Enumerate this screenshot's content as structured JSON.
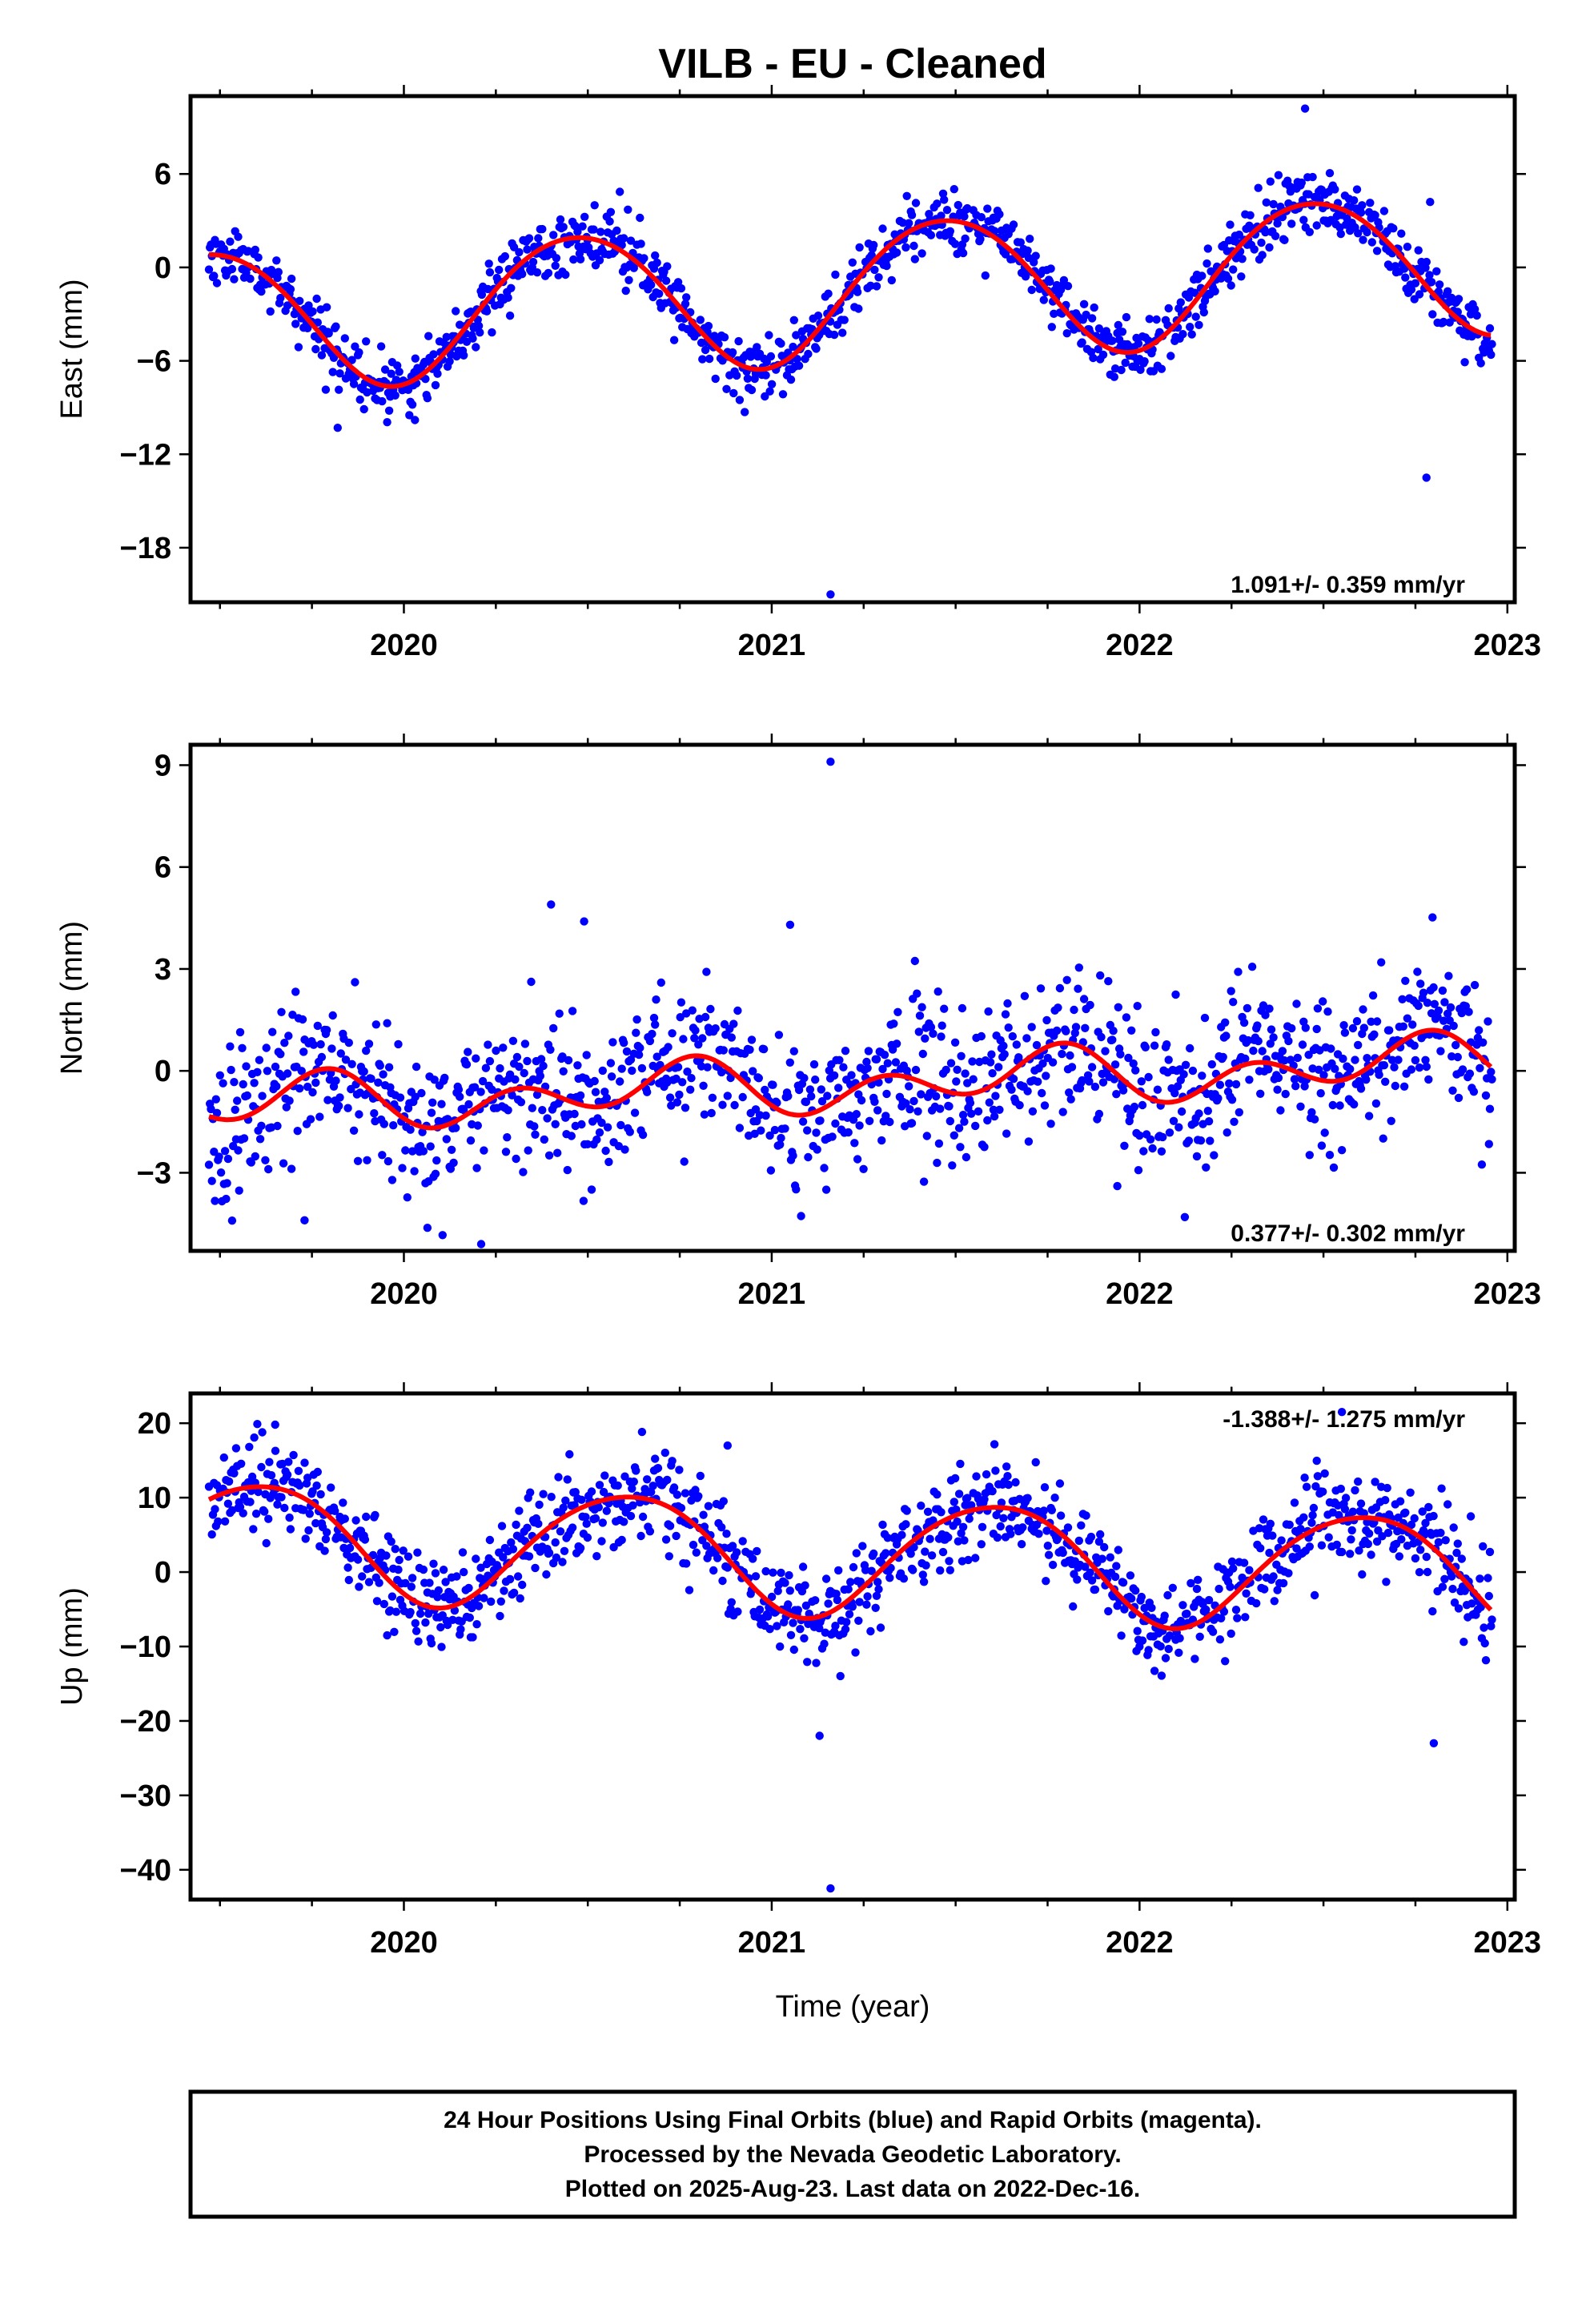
{
  "title": "VILB  - EU - Cleaned",
  "x_axis_label": "Time (year)",
  "footer": {
    "line1": "24 Hour Positions Using Final Orbits (blue) and Rapid Orbits (magenta).",
    "line2": "Processed by the Nevada Geodetic Laboratory.",
    "line3": "Plotted on 2025-Aug-23. Last data on 2022-Dec-16."
  },
  "colors": {
    "data": "#0000ff",
    "fit": "#ff0000",
    "frame": "#000000"
  },
  "chart_data": [
    {
      "type": "scatter",
      "ylabel": "East (mm)",
      "rate_text": "1.091+/- 0.359 mm/yr",
      "xlim": [
        2019.42,
        2023.02
      ],
      "ylim": [
        -21.5,
        11
      ],
      "x_ticks": [
        2020,
        2021,
        2022,
        2023
      ],
      "x_tick_labels": [
        "2020",
        "2021",
        "2022",
        "2023"
      ],
      "y_ticks": [
        6,
        0,
        -6,
        -12,
        -18
      ],
      "y_tick_labels": [
        "6",
        "0",
        "−6",
        "−12",
        "−18"
      ],
      "fit": {
        "offset": -1.5,
        "rate": 1.091,
        "amplitude": 4.5,
        "phase_year": 0.22,
        "semi_amplitude": 0.3,
        "semi_phase": 0.1
      },
      "scatter_sd": 1.0,
      "outliers": [
        [
          2021.16,
          -21.0
        ],
        [
          2022.78,
          -13.5
        ],
        [
          2019.82,
          -10.3
        ],
        [
          2020.03,
          -9.8
        ],
        [
          2022.45,
          10.2
        ],
        [
          2022.79,
          4.2
        ]
      ],
      "seed": 11
    },
    {
      "type": "scatter",
      "ylabel": "North (mm)",
      "rate_text": "0.377+/- 0.302 mm/yr",
      "xlim": [
        2019.42,
        2023.02
      ],
      "ylim": [
        -5.3,
        9.6
      ],
      "x_ticks": [
        2020,
        2021,
        2022,
        2023
      ],
      "x_tick_labels": [
        "2020",
        "2021",
        "2022",
        "2023"
      ],
      "y_ticks": [
        9,
        6,
        3,
        0,
        -3
      ],
      "y_tick_labels": [
        "9",
        "6",
        "3",
        "0",
        "−3"
      ],
      "fit": {
        "offset": -0.4,
        "rate": 0.377,
        "amplitude": 0.45,
        "phase_year": 0.47,
        "semi_amplitude": 0.6,
        "semi_phase": 0.18
      },
      "scatter_sd": 1.1,
      "outliers": [
        [
          2021.16,
          9.1
        ],
        [
          2020.4,
          4.9
        ],
        [
          2020.49,
          4.4
        ],
        [
          2020.21,
          -5.1
        ],
        [
          2019.73,
          -4.4
        ],
        [
          2021.05,
          4.3
        ]
      ],
      "seed": 23
    },
    {
      "type": "scatter",
      "ylabel": "Up (mm)",
      "rate_text": "-1.388+/- 1.275 mm/yr",
      "xlim": [
        2019.42,
        2023.02
      ],
      "ylim": [
        -44,
        24
      ],
      "x_ticks": [
        2020,
        2021,
        2022,
        2023
      ],
      "x_tick_labels": [
        "2020",
        "2021",
        "2022",
        "2023"
      ],
      "y_ticks": [
        20,
        10,
        0,
        -10,
        -20,
        -30,
        -40
      ],
      "y_tick_labels": [
        "20",
        "10",
        "0",
        "−10",
        "−20",
        "−30",
        "−40"
      ],
      "fit": {
        "offset": 2.2,
        "rate": -1.388,
        "amplitude": 7.8,
        "phase_year": 0.35,
        "semi_amplitude": 0.8,
        "semi_phase": 0.2
      },
      "scatter_sd": 3.2,
      "outliers": [
        [
          2021.16,
          -42.5
        ],
        [
          2022.8,
          -23.0
        ],
        [
          2019.65,
          19.8
        ],
        [
          2022.55,
          21.5
        ],
        [
          2020.88,
          17.0
        ],
        [
          2021.13,
          -22.0
        ]
      ],
      "seed": 37
    }
  ]
}
